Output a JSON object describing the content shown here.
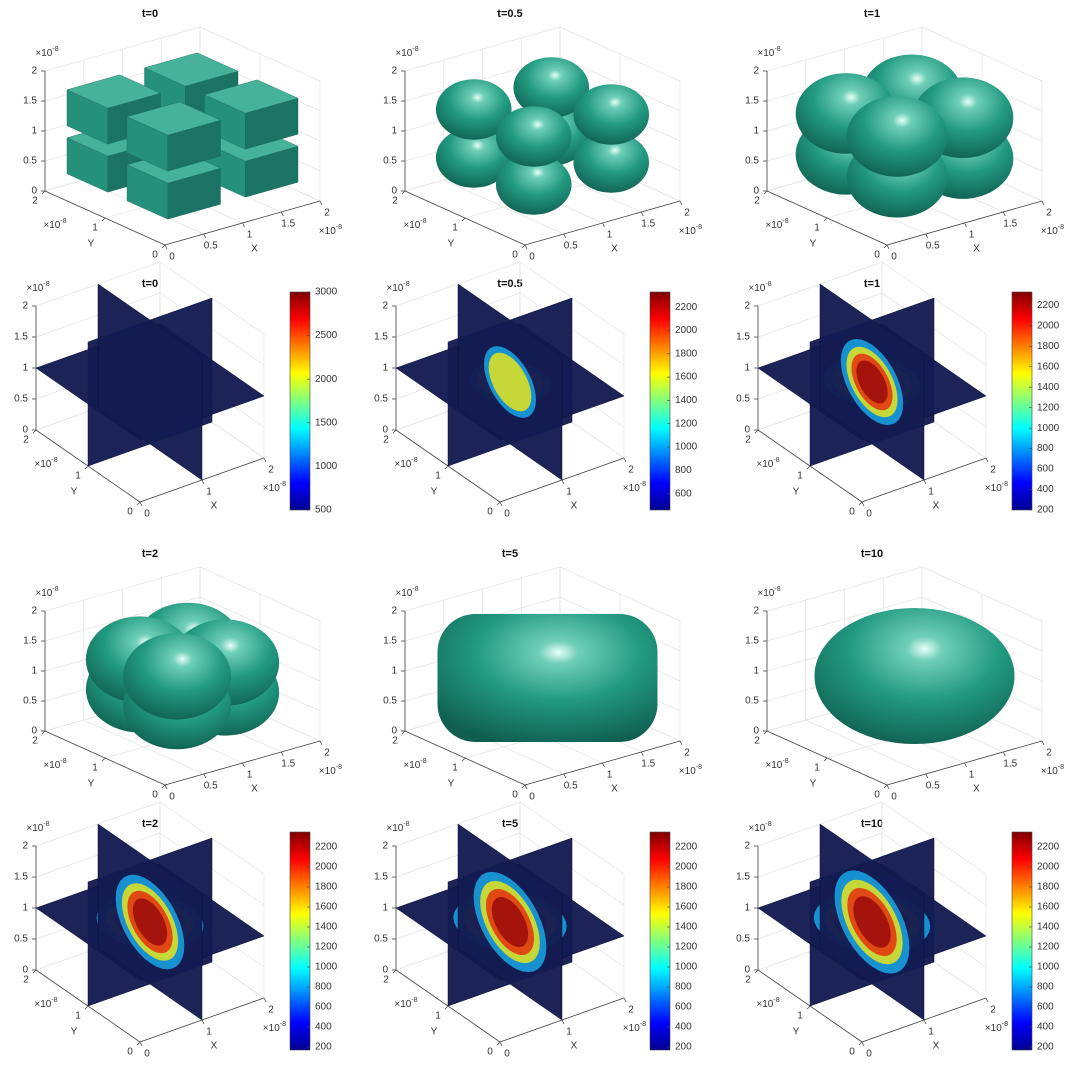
{
  "chart_data": [
    {
      "type": "isosurface",
      "title": "t=0",
      "xlabel": "X",
      "ylabel": "Y",
      "xlim": [
        0,
        2
      ],
      "ylim": [
        0,
        2
      ],
      "zlim": [
        0,
        2
      ],
      "xticks": [
        0,
        0.5,
        1,
        1.5,
        2
      ],
      "yticks": [
        0,
        1,
        2
      ],
      "zticks": [
        0,
        0.5,
        1,
        1.5,
        2
      ],
      "exponent": {
        "base": "×10",
        "power": "-8"
      }
    },
    {
      "type": "isosurface",
      "title": "t=0.5",
      "xlabel": "X",
      "ylabel": "Y",
      "xlim": [
        0,
        2
      ],
      "ylim": [
        0,
        2
      ],
      "zlim": [
        0,
        2
      ],
      "xticks": [
        0,
        0.5,
        1,
        1.5,
        2
      ],
      "yticks": [
        0,
        1,
        2
      ],
      "zticks": [
        0,
        0.5,
        1,
        1.5,
        2
      ],
      "exponent": {
        "base": "×10",
        "power": "-8"
      }
    },
    {
      "type": "isosurface",
      "title": "t=1",
      "xlabel": "X",
      "ylabel": "Y",
      "xlim": [
        0,
        2
      ],
      "ylim": [
        0,
        2
      ],
      "zlim": [
        0,
        2
      ],
      "xticks": [
        0,
        0.5,
        1,
        1.5,
        2
      ],
      "yticks": [
        0,
        1,
        2
      ],
      "zticks": [
        0,
        0.5,
        1,
        1.5,
        2
      ],
      "exponent": {
        "base": "×10",
        "power": "-8"
      }
    },
    {
      "type": "slice",
      "title": "t=0",
      "xlabel": "X",
      "ylabel": "Y",
      "xlim": [
        0,
        2
      ],
      "ylim": [
        0,
        2
      ],
      "zlim": [
        0,
        2
      ],
      "xticks": [
        0,
        1,
        2
      ],
      "yticks": [
        0,
        1,
        2
      ],
      "zticks": [
        0,
        0.5,
        1,
        1.5,
        2
      ],
      "exponent": {
        "base": "×10",
        "power": "-8"
      },
      "clim": [
        500,
        3000
      ],
      "cticks": [
        500,
        1000,
        1500,
        2000,
        2500,
        3000
      ]
    },
    {
      "type": "slice",
      "title": "t=0.5",
      "xlabel": "X",
      "ylabel": "Y",
      "xlim": [
        0,
        2
      ],
      "ylim": [
        0,
        2
      ],
      "zlim": [
        0,
        2
      ],
      "xticks": [
        0,
        1,
        2
      ],
      "yticks": [
        0,
        1,
        2
      ],
      "zticks": [
        0,
        0.5,
        1,
        1.5,
        2
      ],
      "exponent": {
        "base": "×10",
        "power": "-8"
      },
      "clim": [
        460,
        2330
      ],
      "cticks": [
        600,
        800,
        1000,
        1200,
        1400,
        1600,
        1800,
        2000,
        2200
      ]
    },
    {
      "type": "slice",
      "title": "t=1",
      "xlabel": "X",
      "ylabel": "Y",
      "xlim": [
        0,
        2
      ],
      "ylim": [
        0,
        2
      ],
      "zlim": [
        0,
        2
      ],
      "xticks": [
        0,
        1,
        2
      ],
      "yticks": [
        0,
        1,
        2
      ],
      "zticks": [
        0,
        0.5,
        1,
        1.5,
        2
      ],
      "exponent": {
        "base": "×10",
        "power": "-8"
      },
      "clim": [
        200,
        2330
      ],
      "cticks": [
        200,
        400,
        600,
        800,
        1000,
        1200,
        1400,
        1600,
        1800,
        2000,
        2200
      ]
    },
    {
      "type": "isosurface",
      "title": "t=2",
      "xlabel": "X",
      "ylabel": "Y",
      "xlim": [
        0,
        2
      ],
      "ylim": [
        0,
        2
      ],
      "zlim": [
        0,
        2
      ],
      "xticks": [
        0,
        0.5,
        1,
        1.5,
        2
      ],
      "yticks": [
        0,
        1,
        2
      ],
      "zticks": [
        0,
        0.5,
        1,
        1.5,
        2
      ],
      "exponent": {
        "base": "×10",
        "power": "-8"
      }
    },
    {
      "type": "isosurface",
      "title": "t=5",
      "xlabel": "X",
      "ylabel": "Y",
      "xlim": [
        0,
        2
      ],
      "ylim": [
        0,
        2
      ],
      "zlim": [
        0,
        2
      ],
      "xticks": [
        0,
        0.5,
        1,
        1.5,
        2
      ],
      "yticks": [
        0,
        1,
        2
      ],
      "zticks": [
        0,
        0.5,
        1,
        1.5,
        2
      ],
      "exponent": {
        "base": "×10",
        "power": "-8"
      }
    },
    {
      "type": "isosurface",
      "title": "t=10",
      "xlabel": "X",
      "ylabel": "Y",
      "xlim": [
        0,
        2
      ],
      "ylim": [
        0,
        2
      ],
      "zlim": [
        0,
        2
      ],
      "xticks": [
        0,
        0.5,
        1,
        1.5,
        2
      ],
      "yticks": [
        0,
        1,
        2
      ],
      "zticks": [
        0,
        0.5,
        1,
        1.5,
        2
      ],
      "exponent": {
        "base": "×10",
        "power": "-8"
      }
    },
    {
      "type": "slice",
      "title": "t=2",
      "xlabel": "X",
      "ylabel": "Y",
      "xlim": [
        0,
        2
      ],
      "ylim": [
        0,
        2
      ],
      "zlim": [
        0,
        2
      ],
      "xticks": [
        0,
        1,
        2
      ],
      "yticks": [
        0,
        1,
        2
      ],
      "zticks": [
        0,
        0.5,
        1,
        1.5,
        2
      ],
      "exponent": {
        "base": "×10",
        "power": "-8"
      },
      "clim": [
        170,
        2350
      ],
      "cticks": [
        200,
        400,
        600,
        800,
        1000,
        1200,
        1400,
        1600,
        1800,
        2000,
        2200
      ]
    },
    {
      "type": "slice",
      "title": "t=5",
      "xlabel": "X",
      "ylabel": "Y",
      "xlim": [
        0,
        2
      ],
      "ylim": [
        0,
        2
      ],
      "zlim": [
        0,
        2
      ],
      "xticks": [
        0,
        1,
        2
      ],
      "yticks": [
        0,
        1,
        2
      ],
      "zticks": [
        0,
        0.5,
        1,
        1.5,
        2
      ],
      "exponent": {
        "base": "×10",
        "power": "-8"
      },
      "clim": [
        170,
        2350
      ],
      "cticks": [
        200,
        400,
        600,
        800,
        1000,
        1200,
        1400,
        1600,
        1800,
        2000,
        2200
      ]
    },
    {
      "type": "slice",
      "title": "t=10",
      "xlabel": "X",
      "ylabel": "Y",
      "xlim": [
        0,
        2
      ],
      "ylim": [
        0,
        2
      ],
      "zlim": [
        0,
        2
      ],
      "xticks": [
        0,
        1,
        2
      ],
      "yticks": [
        0,
        1,
        2
      ],
      "zticks": [
        0,
        0.5,
        1,
        1.5,
        2
      ],
      "exponent": {
        "base": "×10",
        "power": "-8"
      },
      "clim": [
        170,
        2350
      ],
      "cticks": [
        200,
        400,
        600,
        800,
        1000,
        1200,
        1400,
        1600,
        1800,
        2000,
        2200
      ]
    }
  ]
}
